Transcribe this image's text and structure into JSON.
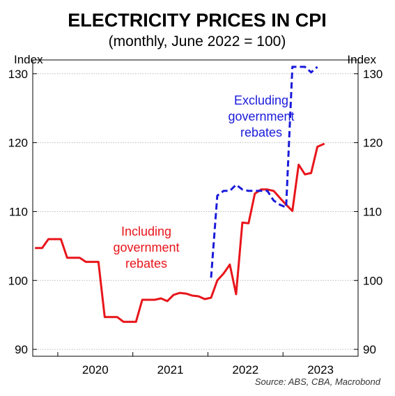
{
  "chart_data": {
    "type": "line",
    "title": "ELECTRICITY PRICES IN CPI",
    "subtitle": "(monthly, June 2022 = 100)",
    "ylabel_left": "Index",
    "ylabel_right": "Index",
    "ylim": [
      89,
      132
    ],
    "yticks": [
      90,
      100,
      110,
      120,
      130
    ],
    "xlim": [
      "2019-09",
      "2023-12"
    ],
    "xticks": [
      "2020",
      "2021",
      "2022",
      "2023"
    ],
    "grid": "horizontal dotted",
    "source": "Source: ABS, CBA, Macrobond",
    "colors": {
      "including": "#e8151b",
      "excluding": "#1a1adb"
    },
    "annotations": [
      {
        "series": "excluding",
        "lines": [
          "Excluding",
          "government",
          "rebates"
        ],
        "color": "#1a1adb"
      },
      {
        "series": "including",
        "lines": [
          "Including",
          "government",
          "rebates"
        ],
        "color": "#e8151b"
      }
    ],
    "series": [
      {
        "key": "including",
        "style": "solid",
        "color": "#e8151b",
        "points": [
          [
            "2019-09",
            104.7
          ],
          [
            "2019-10",
            104.7
          ],
          [
            "2019-11",
            106.0
          ],
          [
            "2019-12",
            106.0
          ],
          [
            "2020-01",
            106.0
          ],
          [
            "2020-02",
            103.3
          ],
          [
            "2020-03",
            103.3
          ],
          [
            "2020-04",
            103.3
          ],
          [
            "2020-05",
            102.7
          ],
          [
            "2020-06",
            102.7
          ],
          [
            "2020-07",
            102.7
          ],
          [
            "2020-08",
            94.7
          ],
          [
            "2020-09",
            94.7
          ],
          [
            "2020-10",
            94.7
          ],
          [
            "2020-11",
            94.0
          ],
          [
            "2020-12",
            94.0
          ],
          [
            "2021-01",
            94.0
          ],
          [
            "2021-02",
            97.2
          ],
          [
            "2021-03",
            97.2
          ],
          [
            "2021-04",
            97.2
          ],
          [
            "2021-05",
            97.4
          ],
          [
            "2021-06",
            97.0
          ],
          [
            "2021-07",
            97.9
          ],
          [
            "2021-08",
            98.2
          ],
          [
            "2021-09",
            98.1
          ],
          [
            "2021-10",
            97.8
          ],
          [
            "2021-11",
            97.7
          ],
          [
            "2021-12",
            97.3
          ],
          [
            "2022-01",
            97.5
          ],
          [
            "2022-02",
            100.0
          ],
          [
            "2022-03",
            101.0
          ],
          [
            "2022-04",
            102.3
          ],
          [
            "2022-05",
            98.0
          ],
          [
            "2022-06",
            108.4
          ],
          [
            "2022-07",
            108.3
          ],
          [
            "2022-08",
            112.6
          ],
          [
            "2022-09",
            113.2
          ],
          [
            "2022-10",
            113.2
          ],
          [
            "2022-11",
            113.0
          ],
          [
            "2022-12",
            112.0
          ],
          [
            "2023-01",
            111.0
          ],
          [
            "2023-02",
            110.1
          ],
          [
            "2023-03",
            116.8
          ],
          [
            "2023-04",
            115.4
          ],
          [
            "2023-05",
            115.6
          ],
          [
            "2023-06",
            119.4
          ],
          [
            "2023-07",
            119.8
          ]
        ]
      },
      {
        "key": "excluding",
        "style": "dashed",
        "color": "#1a1adb",
        "points": [
          [
            "2022-01",
            100.4
          ],
          [
            "2022-02",
            112.3
          ],
          [
            "2022-03",
            113.0
          ],
          [
            "2022-04",
            113.0
          ],
          [
            "2022-05",
            113.9
          ],
          [
            "2022-06",
            113.2
          ],
          [
            "2022-07",
            113.0
          ],
          [
            "2022-08",
            113.0
          ],
          [
            "2022-09",
            113.0
          ],
          [
            "2022-10",
            113.0
          ],
          [
            "2022-11",
            111.6
          ],
          [
            "2022-12",
            111.0
          ],
          [
            "2023-01",
            110.6
          ],
          [
            "2023-02",
            131.0
          ],
          [
            "2023-03",
            131.0
          ],
          [
            "2023-04",
            131.0
          ],
          [
            "2023-05",
            130.2
          ],
          [
            "2023-06",
            131.0
          ]
        ]
      }
    ]
  }
}
